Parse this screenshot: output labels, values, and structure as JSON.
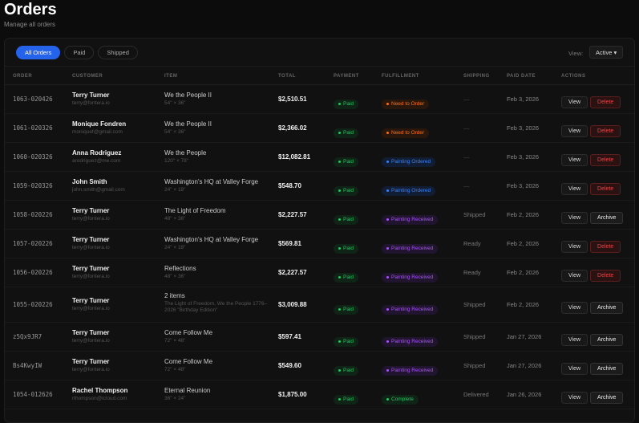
{
  "header": {
    "title": "Orders",
    "subtitle": "Manage all orders"
  },
  "filters": {
    "tabs": [
      "All Orders",
      "Paid",
      "Shipped"
    ],
    "active": "All Orders",
    "view_label": "View:",
    "view_value": "Active ▾"
  },
  "columns": [
    "ORDER",
    "CUSTOMER",
    "ITEM",
    "TOTAL",
    "PAYMENT",
    "FULFILLMENT",
    "SHIPPING",
    "PAID DATE",
    "ACTIONS"
  ],
  "colors": {
    "accent": "#2563eb",
    "paid": "#22c55e",
    "need_to_order": "#f97316",
    "painting_ordered": "#3b82f6",
    "painting_received": "#a855f7",
    "complete": "#22c55e",
    "delete": "#e04848"
  },
  "orders": [
    {
      "id": "1063-020426",
      "name": "Terry Turner",
      "email": "terry@fontera.io",
      "item": "We the People II",
      "item_sub": "54\" × 36\"",
      "total": "$2,510.51",
      "payment": "Paid",
      "fulfillment": "Need to Order",
      "shipping": "—",
      "date": "Feb 3, 2026",
      "actions": [
        "View",
        "Delete"
      ]
    },
    {
      "id": "1061-020326",
      "name": "Monique Fondren",
      "email": "moniquef@gmail.com",
      "item": "We the People II",
      "item_sub": "54\" × 36\"",
      "total": "$2,366.02",
      "payment": "Paid",
      "fulfillment": "Need to Order",
      "shipping": "—",
      "date": "Feb 3, 2026",
      "actions": [
        "View",
        "Delete"
      ]
    },
    {
      "id": "1060-020326",
      "name": "Anna Rodriguez",
      "email": "arodriguez@me.com",
      "item": "We the People",
      "item_sub": "120\" × 78\"",
      "total": "$12,082.81",
      "payment": "Paid",
      "fulfillment": "Painting Ordered",
      "shipping": "—",
      "date": "Feb 3, 2026",
      "actions": [
        "View",
        "Delete"
      ]
    },
    {
      "id": "1059-020326",
      "name": "John Smith",
      "email": "john.smith@gmail.com",
      "item": "Washington's HQ at Valley Forge",
      "item_sub": "24\" × 18\"",
      "total": "$548.70",
      "payment": "Paid",
      "fulfillment": "Painting Ordered",
      "shipping": "—",
      "date": "Feb 3, 2026",
      "actions": [
        "View",
        "Delete"
      ]
    },
    {
      "id": "1058-020226",
      "name": "Terry Turner",
      "email": "terry@fontera.io",
      "item": "The Light of Freedom",
      "item_sub": "48\" × 36\"",
      "total": "$2,227.57",
      "payment": "Paid",
      "fulfillment": "Painting Received",
      "shipping": "Shipped",
      "date": "Feb 2, 2026",
      "actions": [
        "View",
        "Archive"
      ]
    },
    {
      "id": "1057-020226",
      "name": "Terry Turner",
      "email": "terry@fontera.io",
      "item": "Washington's HQ at Valley Forge",
      "item_sub": "24\" × 18\"",
      "total": "$569.81",
      "payment": "Paid",
      "fulfillment": "Painting Received",
      "shipping": "Ready",
      "date": "Feb 2, 2026",
      "actions": [
        "View",
        "Delete"
      ]
    },
    {
      "id": "1056-020226",
      "name": "Terry Turner",
      "email": "terry@fontera.io",
      "item": "Reflections",
      "item_sub": "48\" × 36\"",
      "total": "$2,227.57",
      "payment": "Paid",
      "fulfillment": "Painting Received",
      "shipping": "Ready",
      "date": "Feb 2, 2026",
      "actions": [
        "View",
        "Delete"
      ]
    },
    {
      "id": "1055-020226",
      "name": "Terry Turner",
      "email": "terry@fontera.io",
      "item": "2 items",
      "item_sub": "The Light of Freedom, We the People 1776–2026 \"Birthday Edition\"",
      "total": "$3,009.88",
      "payment": "Paid",
      "fulfillment": "Painting Received",
      "shipping": "Shipped",
      "date": "Feb 2, 2026",
      "actions": [
        "View",
        "Archive"
      ]
    },
    {
      "id": "z5Qx9JR7",
      "name": "Terry Turner",
      "email": "terry@fontera.io",
      "item": "Come Follow Me",
      "item_sub": "72\" × 48\"",
      "total": "$597.41",
      "payment": "Paid",
      "fulfillment": "Painting Received",
      "shipping": "Shipped",
      "date": "Jan 27, 2026",
      "actions": [
        "View",
        "Archive"
      ]
    },
    {
      "id": "Bs4KwyIW",
      "name": "Terry Turner",
      "email": "terry@fontera.io",
      "item": "Come Follow Me",
      "item_sub": "72\" × 48\"",
      "total": "$549.60",
      "payment": "Paid",
      "fulfillment": "Painting Received",
      "shipping": "Shipped",
      "date": "Jan 27, 2026",
      "actions": [
        "View",
        "Archive"
      ]
    },
    {
      "id": "1054-012626",
      "name": "Rachel Thompson",
      "email": "rthompson@icloud.com",
      "item": "Eternal Reunion",
      "item_sub": "36\" × 24\"",
      "total": "$1,875.00",
      "payment": "Paid",
      "fulfillment": "Complete",
      "shipping": "Delivered",
      "date": "Jan 26, 2026",
      "actions": [
        "View",
        "Archive"
      ]
    }
  ]
}
